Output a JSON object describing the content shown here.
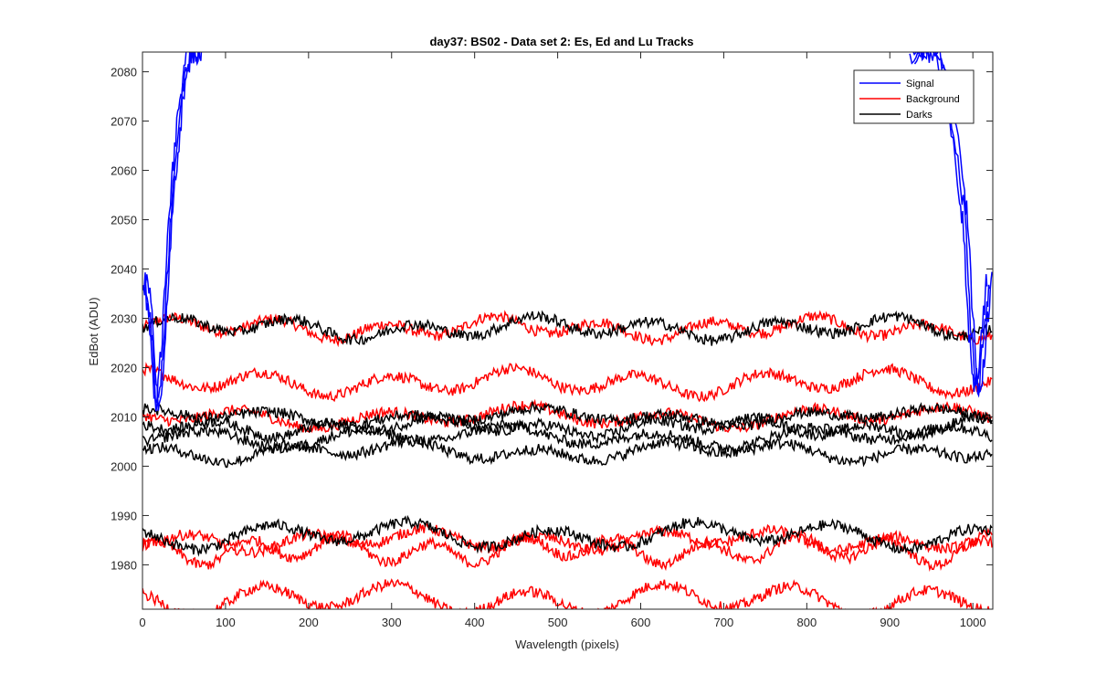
{
  "chart_data": {
    "type": "line",
    "title": "day37: BS02 - Data set 2: Es, Ed and Lu Tracks",
    "xlabel": "Wavelength (pixels)",
    "ylabel": "EdBot (ADU)",
    "xlim": [
      0,
      1024
    ],
    "ylim": [
      1971,
      2084
    ],
    "xticks": [
      0,
      100,
      200,
      300,
      400,
      500,
      600,
      700,
      800,
      900,
      1000
    ],
    "yticks": [
      1980,
      1990,
      2000,
      2010,
      2020,
      2030,
      2040,
      2050,
      2060,
      2070,
      2080
    ],
    "grid": false,
    "legend_placement": "top-right",
    "series": [
      {
        "name": "Signal",
        "color": "#0000ff",
        "x": [
          0,
          5,
          10,
          15,
          20,
          25,
          30,
          35,
          40,
          45,
          50,
          55,
          60,
          65,
          70
        ],
        "y": [
          2038,
          2034,
          2025,
          2012,
          2018,
          2030,
          2045,
          2058,
          2066,
          2075,
          2079,
          2084,
          2084,
          2084,
          2084
        ],
        "x2": [
          930,
          940,
          950,
          960,
          970,
          980,
          990,
          995,
          1000,
          1005,
          1010,
          1015,
          1020,
          1024
        ],
        "y2": [
          2084,
          2084,
          2084,
          2083,
          2078,
          2068,
          2055,
          2048,
          2030,
          2020,
          2015,
          2025,
          2033,
          2040
        ]
      },
      {
        "name": "Background",
        "color": "#ff0000",
        "traces": [
          {
            "base": 2028,
            "amp": 1.6,
            "period": 130
          },
          {
            "base": 2017,
            "amp": 2.0,
            "period": 150
          },
          {
            "base": 2010,
            "amp": 1.5,
            "period": 170
          },
          {
            "base": 1985,
            "amp": 1.5,
            "period": 140
          },
          {
            "base": 1983,
            "amp": 2.2,
            "period": 110
          },
          {
            "base": 1973,
            "amp": 2.5,
            "period": 160
          }
        ]
      },
      {
        "name": "Darks",
        "color": "#000000",
        "traces": [
          {
            "base": 2028,
            "amp": 1.6,
            "period": 145
          },
          {
            "base": 2010,
            "amp": 1.0,
            "period": 160
          },
          {
            "base": 2008,
            "amp": 1.2,
            "period": 130
          },
          {
            "base": 2006,
            "amp": 1.5,
            "period": 180
          },
          {
            "base": 2003,
            "amp": 1.3,
            "period": 150
          },
          {
            "base": 1986,
            "amp": 2.0,
            "period": 170
          }
        ]
      }
    ]
  },
  "legend": {
    "signal": "Signal",
    "background": "Background",
    "darks": "Darks"
  }
}
